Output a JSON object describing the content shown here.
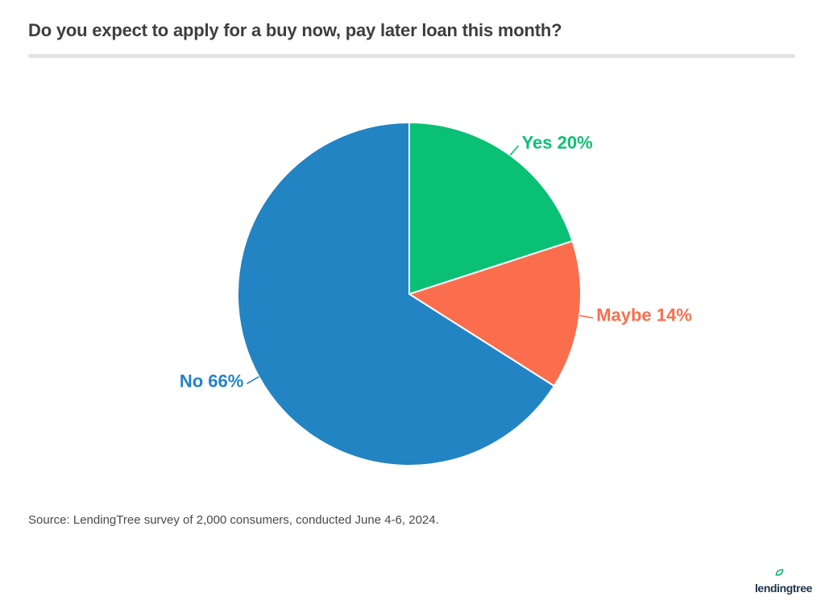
{
  "header": {
    "title": "Do you expect to apply for a buy now, pay later loan this month?"
  },
  "chart_data": {
    "type": "pie",
    "title": "Do you expect to apply for a buy now, pay later loan this month?",
    "start_angle_deg": 0,
    "direction": "clockwise",
    "label_format": "{label} {value}%",
    "label_position": "outside",
    "slices": [
      {
        "label": "Yes",
        "value": 20,
        "color": "#0ac075"
      },
      {
        "label": "Maybe",
        "value": 14,
        "color": "#fa6e4d"
      },
      {
        "label": "No",
        "value": 66,
        "color": "#2384c4"
      }
    ]
  },
  "footer": {
    "source": "Source: LendingTree survey of 2,000 consumers, conducted June 4-6, 2024.",
    "logo": {
      "text": "lendingtree",
      "text_color": "#1d3349",
      "leaf_color": "#00ad70"
    }
  }
}
